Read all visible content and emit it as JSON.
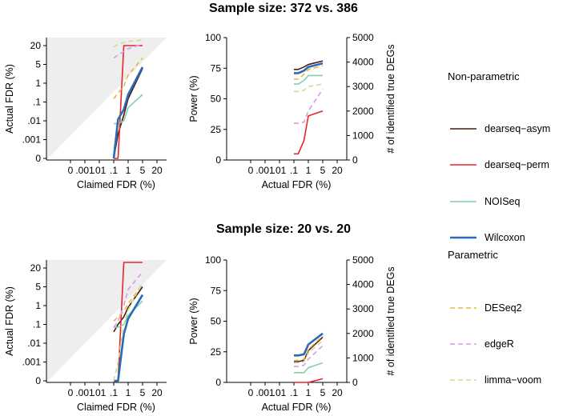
{
  "figure": {
    "scales": {
      "fdr_ticks": [
        "0",
        ".001",
        ".01",
        ".1",
        "1",
        "5",
        "20"
      ],
      "actual_fdr_y_ticks": [
        "0",
        ".001",
        ".01",
        ".1",
        "1",
        "5",
        "20"
      ],
      "power_ticks": [
        "0",
        "25",
        "50",
        "75",
        "100"
      ],
      "deg_ticks": [
        "0",
        "1000",
        "2000",
        "3000",
        "4000",
        "5000"
      ]
    },
    "legend": {
      "groups": [
        {
          "title": "Non-parametric",
          "items": [
            {
              "label": "dearseq−asym",
              "color": "#4a1a14",
              "dash": false,
              "width": 1.6
            },
            {
              "label": "dearseq−perm",
              "color": "#e8252a",
              "dash": false,
              "width": 1.6
            },
            {
              "label": "NOISeq",
              "color": "#7fd1ad",
              "dash": false,
              "width": 1.6
            },
            {
              "label": "Wilcoxon",
              "color": "#2a6bb5",
              "dash": false,
              "width": 2.6
            }
          ]
        },
        {
          "title": "Parametric",
          "items": [
            {
              "label": "DESeq2",
              "color": "#f0b341",
              "dash": true,
              "width": 1.6
            },
            {
              "label": "edgeR",
              "color": "#d69ae6",
              "dash": true,
              "width": 1.6
            },
            {
              "label": "limma−voom",
              "color": "#cadf8d",
              "dash": true,
              "width": 1.6
            }
          ]
        }
      ]
    }
  },
  "chart_data": [
    {
      "type": "line",
      "panel": "fdr-372",
      "title": "Sample size: 372 vs. 386",
      "xlabel": "Claimed FDR (%)",
      "ylabel": "Actual FDR (%)",
      "x": [
        0.1,
        0.2,
        0.5,
        1,
        5
      ],
      "scale": "custom log-like (0, .001, .01, .1, 1, 5, 20)",
      "series": [
        {
          "name": "dearseq−asym",
          "values": [
            0,
            0.002,
            0.02,
            0.15,
            3.5
          ]
        },
        {
          "name": "dearseq−perm",
          "values": [
            0,
            0,
            20,
            20,
            20
          ]
        },
        {
          "name": "NOISeq",
          "values": [
            0.007,
            0.007,
            0.01,
            0.05,
            0.25
          ]
        },
        {
          "name": "Wilcoxon",
          "values": [
            0,
            0.012,
            0.04,
            0.25,
            4
          ]
        },
        {
          "name": "DESeq2",
          "values": [
            0.15,
            0.3,
            0.7,
            2,
            8
          ]
        },
        {
          "name": "edgeR",
          "values": [
            8,
            10,
            13,
            16,
            22
          ]
        },
        {
          "name": "limma−voom",
          "values": [
            18,
            22,
            25,
            27,
            30
          ]
        }
      ]
    },
    {
      "type": "line",
      "panel": "power-372",
      "xlabel": "Actual FDR (%)",
      "ylabel": "Power (%)",
      "ylabel_right": "# of identified true DEGs",
      "ylim": [
        0,
        100
      ],
      "ylim_right": [
        0,
        5000
      ],
      "x": [
        0.1,
        0.2,
        0.5,
        1,
        5
      ],
      "series": [
        {
          "name": "dearseq−asym",
          "values": [
            74,
            74,
            76,
            78,
            81
          ]
        },
        {
          "name": "dearseq−perm",
          "values": [
            5,
            5,
            16,
            36,
            40
          ]
        },
        {
          "name": "NOISeq",
          "values": [
            62,
            62,
            65,
            69,
            69
          ]
        },
        {
          "name": "Wilcoxon",
          "values": [
            71,
            71,
            73,
            76,
            79
          ]
        },
        {
          "name": "DESeq2",
          "values": [
            66,
            66,
            70,
            74,
            77
          ]
        },
        {
          "name": "edgeR",
          "values": [
            30,
            30,
            31,
            40,
            58
          ]
        },
        {
          "name": "limma−voom",
          "values": [
            56,
            56,
            57,
            60,
            62
          ]
        }
      ]
    },
    {
      "type": "line",
      "panel": "fdr-20",
      "title": "Sample size: 20 vs. 20",
      "xlabel": "Claimed FDR (%)",
      "ylabel": "Actual FDR (%)",
      "x": [
        0.1,
        0.2,
        0.5,
        1,
        5
      ],
      "series": [
        {
          "name": "dearseq−asym",
          "values": [
            0.04,
            0.1,
            0.25,
            0.8,
            5
          ]
        },
        {
          "name": "dearseq−perm",
          "values": [
            0,
            0,
            30,
            30,
            30
          ]
        },
        {
          "name": "NOISeq",
          "values": [
            0.07,
            0.07,
            0.1,
            0.3,
            1.5
          ]
        },
        {
          "name": "Wilcoxon",
          "values": [
            0,
            0,
            0.03,
            0.2,
            2.5
          ]
        },
        {
          "name": "DESeq2",
          "values": [
            0.15,
            0.25,
            0.5,
            1.2,
            6
          ]
        },
        {
          "name": "edgeR",
          "values": [
            0.07,
            0.15,
            1,
            4,
            15
          ]
        },
        {
          "name": "limma−voom",
          "values": [
            0,
            0.001,
            0.1,
            0.6,
            7
          ]
        }
      ]
    },
    {
      "type": "line",
      "panel": "power-20",
      "xlabel": "Actual FDR (%)",
      "ylabel": "Power (%)",
      "ylabel_right": "# of identified true DEGs",
      "ylim": [
        0,
        100
      ],
      "ylim_right": [
        0,
        5000
      ],
      "x": [
        0.1,
        0.2,
        0.5,
        1,
        5
      ],
      "series": [
        {
          "name": "dearseq−asym",
          "values": [
            17,
            17,
            18,
            26,
            37
          ]
        },
        {
          "name": "dearseq−perm",
          "values": [
            0,
            0,
            0,
            0,
            3
          ]
        },
        {
          "name": "NOISeq",
          "values": [
            8,
            8,
            8,
            12,
            16
          ]
        },
        {
          "name": "Wilcoxon",
          "values": [
            22,
            22,
            23,
            31,
            40
          ]
        },
        {
          "name": "DESeq2",
          "values": [
            18,
            18,
            19,
            27,
            38
          ]
        },
        {
          "name": "edgeR",
          "values": [
            13,
            13,
            14,
            19,
            30
          ]
        },
        {
          "name": "limma−voom",
          "values": [
            16,
            16,
            17,
            24,
            34
          ]
        }
      ]
    }
  ]
}
